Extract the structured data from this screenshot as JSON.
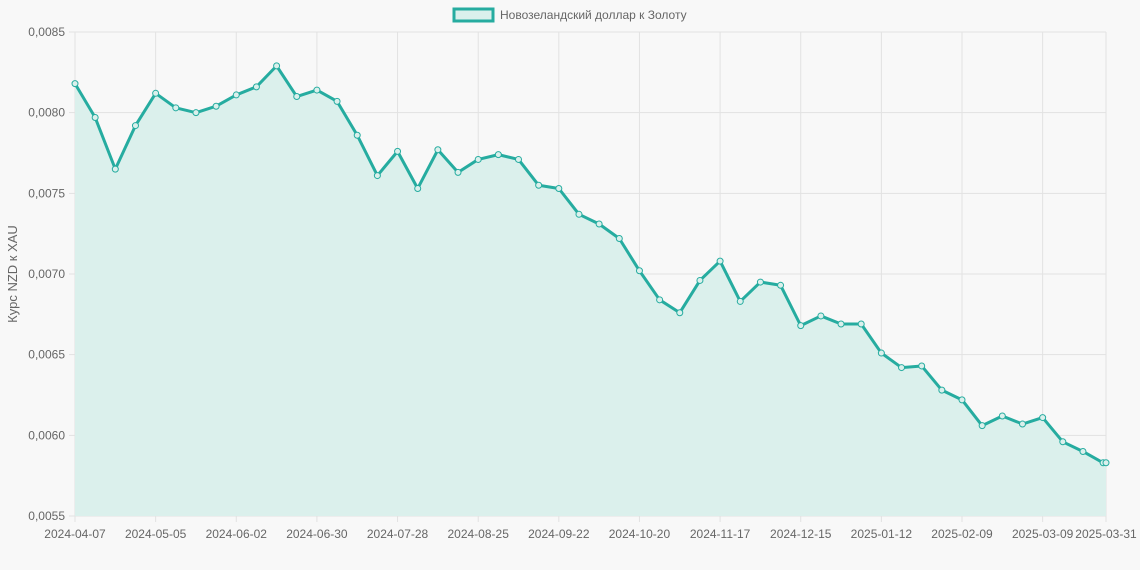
{
  "colors": {
    "line": "#26aca0",
    "fill": "#dbf0ec",
    "grid": "#e2e2e2",
    "background": "#f8f8f8",
    "text": "#666666"
  },
  "chart_data": {
    "type": "area",
    "title": "",
    "ylabel": "Курс NZD к XAU",
    "xlabel": "",
    "ylim": [
      0.0055,
      0.0085
    ],
    "y_ticks": [
      "0,0085",
      "0,0080",
      "0,0075",
      "0,0070",
      "0,0065",
      "0,0060",
      "0,0055"
    ],
    "x_tick_labels": [
      "2024-04-07",
      "2024-05-05",
      "2024-06-02",
      "2024-06-30",
      "2024-07-28",
      "2024-08-25",
      "2024-09-22",
      "2024-10-20",
      "2024-11-17",
      "2024-12-15",
      "2025-01-12",
      "2025-02-09",
      "2025-03-09",
      "2025-03-31"
    ],
    "grid": true,
    "legend": "top-center",
    "series": [
      {
        "name": "Новозеландский доллар к Золоту",
        "x": [
          "2024-04-07",
          "2024-04-14",
          "2024-04-21",
          "2024-04-28",
          "2024-05-05",
          "2024-05-12",
          "2024-05-19",
          "2024-05-26",
          "2024-06-02",
          "2024-06-09",
          "2024-06-16",
          "2024-06-23",
          "2024-06-30",
          "2024-07-07",
          "2024-07-14",
          "2024-07-21",
          "2024-07-28",
          "2024-08-04",
          "2024-08-11",
          "2024-08-18",
          "2024-08-25",
          "2024-09-01",
          "2024-09-08",
          "2024-09-15",
          "2024-09-22",
          "2024-09-29",
          "2024-10-06",
          "2024-10-13",
          "2024-10-20",
          "2024-10-27",
          "2024-11-03",
          "2024-11-10",
          "2024-11-17",
          "2024-11-24",
          "2024-12-01",
          "2024-12-08",
          "2024-12-15",
          "2024-12-22",
          "2024-12-29",
          "2025-01-05",
          "2025-01-12",
          "2025-01-19",
          "2025-01-26",
          "2025-02-02",
          "2025-02-09",
          "2025-02-16",
          "2025-02-23",
          "2025-03-02",
          "2025-03-09",
          "2025-03-16",
          "2025-03-23",
          "2025-03-30",
          "2025-03-31"
        ],
        "values": [
          0.00818,
          0.00797,
          0.00765,
          0.00792,
          0.00812,
          0.00803,
          0.008,
          0.00804,
          0.00811,
          0.00816,
          0.00829,
          0.0081,
          0.00814,
          0.00807,
          0.00786,
          0.00761,
          0.00776,
          0.00753,
          0.00777,
          0.00763,
          0.00771,
          0.00774,
          0.00771,
          0.00755,
          0.00753,
          0.00737,
          0.00731,
          0.00722,
          0.00702,
          0.00684,
          0.00676,
          0.00696,
          0.00708,
          0.00683,
          0.00695,
          0.00693,
          0.00668,
          0.00674,
          0.00669,
          0.00669,
          0.00651,
          0.00642,
          0.00643,
          0.00628,
          0.00622,
          0.00606,
          0.00612,
          0.00607,
          0.00611,
          0.00596,
          0.0059,
          0.00583,
          0.00583
        ]
      }
    ]
  }
}
